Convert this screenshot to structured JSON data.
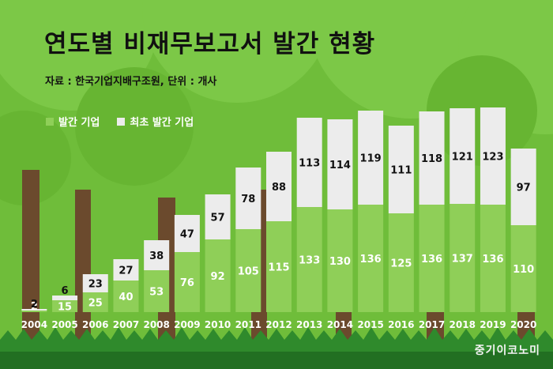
{
  "title": "연도별 비재무보고서 발간 현황",
  "source_note": "자료 : 한국기업지배구조원, 단위 : 개사",
  "brand": "중기이코노미",
  "colors": {
    "green_bar": "#8fcf58",
    "gray_bar": "#ececec",
    "background": "#6fbd3a",
    "text_dark": "#111111",
    "text_light": "#ffffff"
  },
  "chart_data": {
    "type": "bar",
    "stacked": true,
    "categories": [
      "2004",
      "2005",
      "2006",
      "2007",
      "2008",
      "2009",
      "2010",
      "2011",
      "2012",
      "2013",
      "2014",
      "2015",
      "2016",
      "2017",
      "2018",
      "2019",
      "2020"
    ],
    "series": [
      {
        "name": "발간 기업",
        "color": "#8fcf58",
        "values": [
          2,
          15,
          25,
          40,
          53,
          76,
          92,
          105,
          115,
          133,
          130,
          136,
          125,
          136,
          137,
          136,
          110
        ]
      },
      {
        "name": "최초 발간 기업",
        "color": "#ececec",
        "values": [
          2,
          6,
          23,
          27,
          38,
          47,
          57,
          78,
          88,
          113,
          114,
          119,
          111,
          118,
          121,
          123,
          97
        ]
      }
    ],
    "ylim": [
      0,
      260
    ],
    "legend_position": "top-left",
    "grid": false
  }
}
